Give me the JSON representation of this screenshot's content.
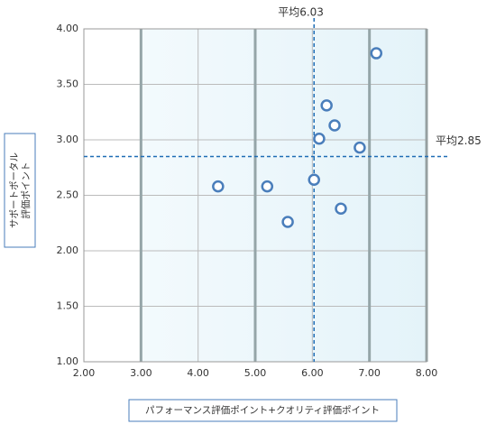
{
  "chart_data": {
    "type": "scatter",
    "x_label": "パフォーマンス評価ポイント+クオリティ評価ポイント",
    "y_label": [
      "サポートポータル",
      "評価ポイント"
    ],
    "series": [
      {
        "color": "#4a7ebb",
        "x": [
          4.35,
          5.21,
          5.57,
          6.03,
          6.12,
          6.25,
          6.39,
          6.5,
          6.83,
          7.12
        ],
        "values": [
          2.58,
          2.58,
          2.26,
          2.64,
          3.01,
          3.31,
          3.13,
          2.38,
          2.93,
          3.78
        ]
      }
    ],
    "xlim": [
      2,
      8
    ],
    "ylim": [
      1,
      4
    ],
    "xticks": [
      {
        "value": 2,
        "label": "2.00"
      },
      {
        "value": 3,
        "label": "3.00"
      },
      {
        "value": 4,
        "label": "4.00"
      },
      {
        "value": 5,
        "label": "5.00"
      },
      {
        "value": 6,
        "label": "6.00"
      },
      {
        "value": 7,
        "label": "7.00"
      },
      {
        "value": 8,
        "label": "8.00"
      }
    ],
    "yticks": [
      {
        "value": 1,
        "label": "1.00"
      },
      {
        "value": 1.5,
        "label": "1.50"
      },
      {
        "value": 2,
        "label": "2.00"
      },
      {
        "value": 2.5,
        "label": "2.50"
      },
      {
        "value": 3,
        "label": "3.00"
      },
      {
        "value": 3.5,
        "label": "3.50"
      },
      {
        "value": 4,
        "label": "4.00"
      }
    ],
    "grid": true,
    "reference_lines": [
      {
        "axis": "x",
        "value": 6.03,
        "label": "平均6.03"
      },
      {
        "axis": "y",
        "value": 2.85,
        "label": "平均2.85"
      }
    ]
  }
}
